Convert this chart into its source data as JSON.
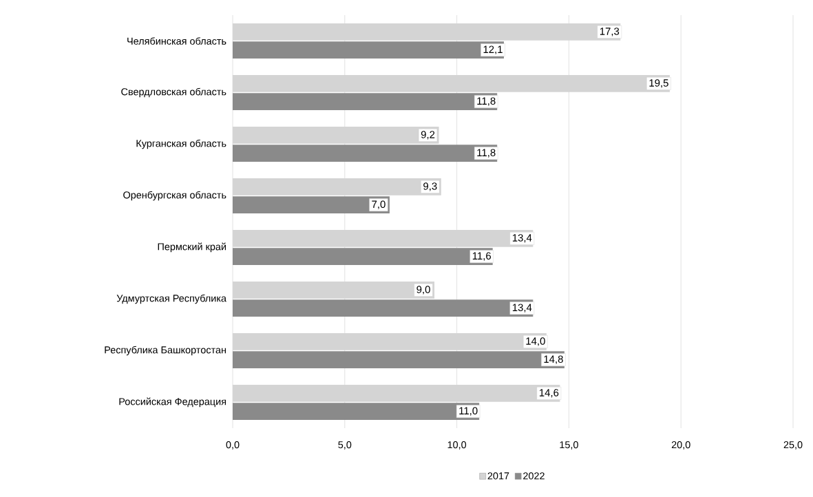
{
  "chart_data": {
    "type": "bar",
    "orientation": "horizontal",
    "categories": [
      "Челябинская область",
      "Свердловская область",
      "Курганская область",
      "Оренбургская область",
      "Пермский край",
      "Удмуртская Республика",
      "Республика Башкортостан",
      "Российская Федерация"
    ],
    "series": [
      {
        "name": "2017",
        "color": "#d4d4d4",
        "values": [
          17.3,
          19.5,
          9.2,
          9.3,
          13.4,
          9.0,
          14.0,
          14.6
        ],
        "value_labels": [
          "17,3",
          "19,5",
          "9,2",
          "9,3",
          "13,4",
          "9,0",
          "14,0",
          "14,6"
        ]
      },
      {
        "name": "2022",
        "color": "#8a8a8a",
        "values": [
          12.1,
          11.8,
          11.8,
          7.0,
          11.6,
          13.4,
          14.8,
          11.0
        ],
        "value_labels": [
          "12,1",
          "11,8",
          "11,8",
          "7,0",
          "11,6",
          "13,4",
          "14,8",
          "11,0"
        ]
      }
    ],
    "xlim": [
      0,
      25
    ],
    "xticks": [
      {
        "value": 0,
        "label": "0,0"
      },
      {
        "value": 5,
        "label": "5,0"
      },
      {
        "value": 10,
        "label": "10,0"
      },
      {
        "value": 15,
        "label": "15,0"
      },
      {
        "value": 20,
        "label": "20,0"
      },
      {
        "value": 25,
        "label": "25,0"
      }
    ],
    "grid": "x",
    "legend": "bottom"
  }
}
